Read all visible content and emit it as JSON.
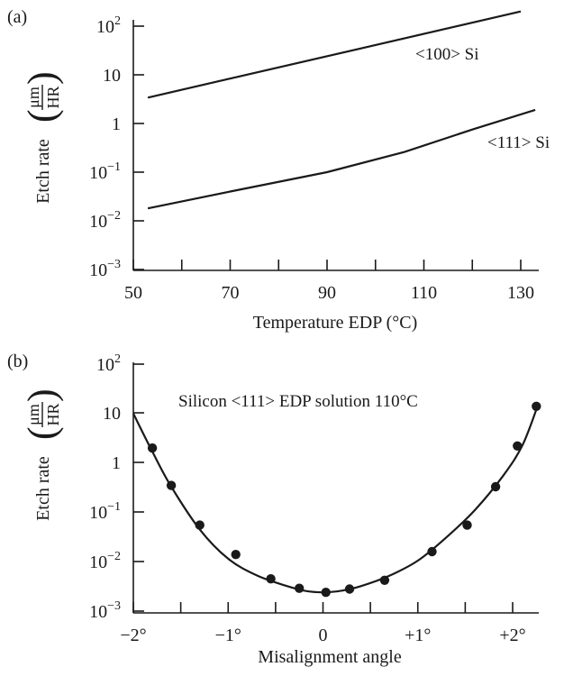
{
  "chart_data": [
    {
      "type": "line",
      "panel_label": "(a)",
      "xlabel": "Temperature EDP (°C)",
      "ylabel": "Etch rate",
      "ylabel_frac_num": "μm",
      "ylabel_frac_den": "HR",
      "xlim": [
        50,
        134
      ],
      "ylim_log10": [
        -3,
        2.3
      ],
      "y_scale": "log",
      "x_ticks": [
        50,
        60,
        70,
        80,
        90,
        100,
        110,
        120,
        130
      ],
      "x_tick_labels": [
        {
          "value": 50,
          "label": "50"
        },
        {
          "value": 70,
          "label": "70"
        },
        {
          "value": 90,
          "label": "90"
        },
        {
          "value": 110,
          "label": "110"
        },
        {
          "value": 130,
          "label": "130"
        }
      ],
      "y_tick_labels": [
        {
          "exp": 2,
          "base": "10",
          "sup": "2"
        },
        {
          "exp": 1,
          "base": "10",
          "sup": ""
        },
        {
          "exp": 0,
          "base": "1",
          "sup": ""
        },
        {
          "exp": -1,
          "base": "10",
          "sup": "−1"
        },
        {
          "exp": -2,
          "base": "10",
          "sup": "−2"
        },
        {
          "exp": -3,
          "base": "10",
          "sup": "−3"
        }
      ],
      "series": [
        {
          "name": "<100> Si",
          "x": [
            53,
            130
          ],
          "y": [
            3.4,
            200
          ]
        },
        {
          "name": "<111> Si",
          "x": [
            53,
            70,
            90,
            106,
            120,
            133
          ],
          "y": [
            0.018,
            0.04,
            0.1,
            0.26,
            0.75,
            1.9
          ]
        }
      ],
      "grid": false
    },
    {
      "type": "scatter",
      "panel_label": "(b)",
      "xlabel": "Misalignment angle",
      "ylabel": "Etch rate",
      "ylabel_frac_num": "μm",
      "ylabel_frac_den": "HR",
      "annotation": "Silicon <111> EDP solution 110°C",
      "xlim": [
        -2,
        2.35
      ],
      "ylim_log10": [
        -3,
        2
      ],
      "y_scale": "log",
      "x_ticks": [
        -2,
        -1.5,
        -1,
        -0.5,
        0,
        0.5,
        1,
        1.5,
        2
      ],
      "x_tick_labels": [
        {
          "value": -2,
          "label": "−2°"
        },
        {
          "value": -1,
          "label": "−1°"
        },
        {
          "value": 0,
          "label": "0"
        },
        {
          "value": 1,
          "label": "+1°"
        },
        {
          "value": 2,
          "label": "+2°"
        }
      ],
      "y_tick_labels": [
        {
          "exp": 2,
          "base": "10",
          "sup": "2"
        },
        {
          "exp": 1,
          "base": "10",
          "sup": ""
        },
        {
          "exp": 0,
          "base": "1",
          "sup": ""
        },
        {
          "exp": -1,
          "base": "10",
          "sup": "−1"
        },
        {
          "exp": -2,
          "base": "10",
          "sup": "−2"
        },
        {
          "exp": -3,
          "base": "10",
          "sup": "−3"
        }
      ],
      "points": {
        "x": [
          -1.8,
          -1.6,
          -1.3,
          -0.92,
          -0.55,
          -0.25,
          0.03,
          0.28,
          0.65,
          1.15,
          1.52,
          1.82,
          2.05,
          2.25
        ],
        "y": [
          2.0,
          0.35,
          0.055,
          0.014,
          0.0045,
          0.0029,
          0.0024,
          0.0028,
          0.0042,
          0.016,
          0.055,
          0.33,
          2.2,
          14
        ]
      },
      "fit_curve": {
        "x": [
          -2.0,
          -1.8,
          -1.6,
          -1.3,
          -1.0,
          -0.7,
          -0.4,
          -0.2,
          0.0,
          0.2,
          0.4,
          0.7,
          1.0,
          1.3,
          1.6,
          1.9,
          2.1,
          2.25
        ],
        "y": [
          10,
          1.7,
          0.33,
          0.045,
          0.0115,
          0.0053,
          0.0033,
          0.0026,
          0.0024,
          0.0026,
          0.0032,
          0.0052,
          0.0105,
          0.031,
          0.11,
          0.55,
          2.2,
          12
        ]
      },
      "grid": false
    }
  ]
}
